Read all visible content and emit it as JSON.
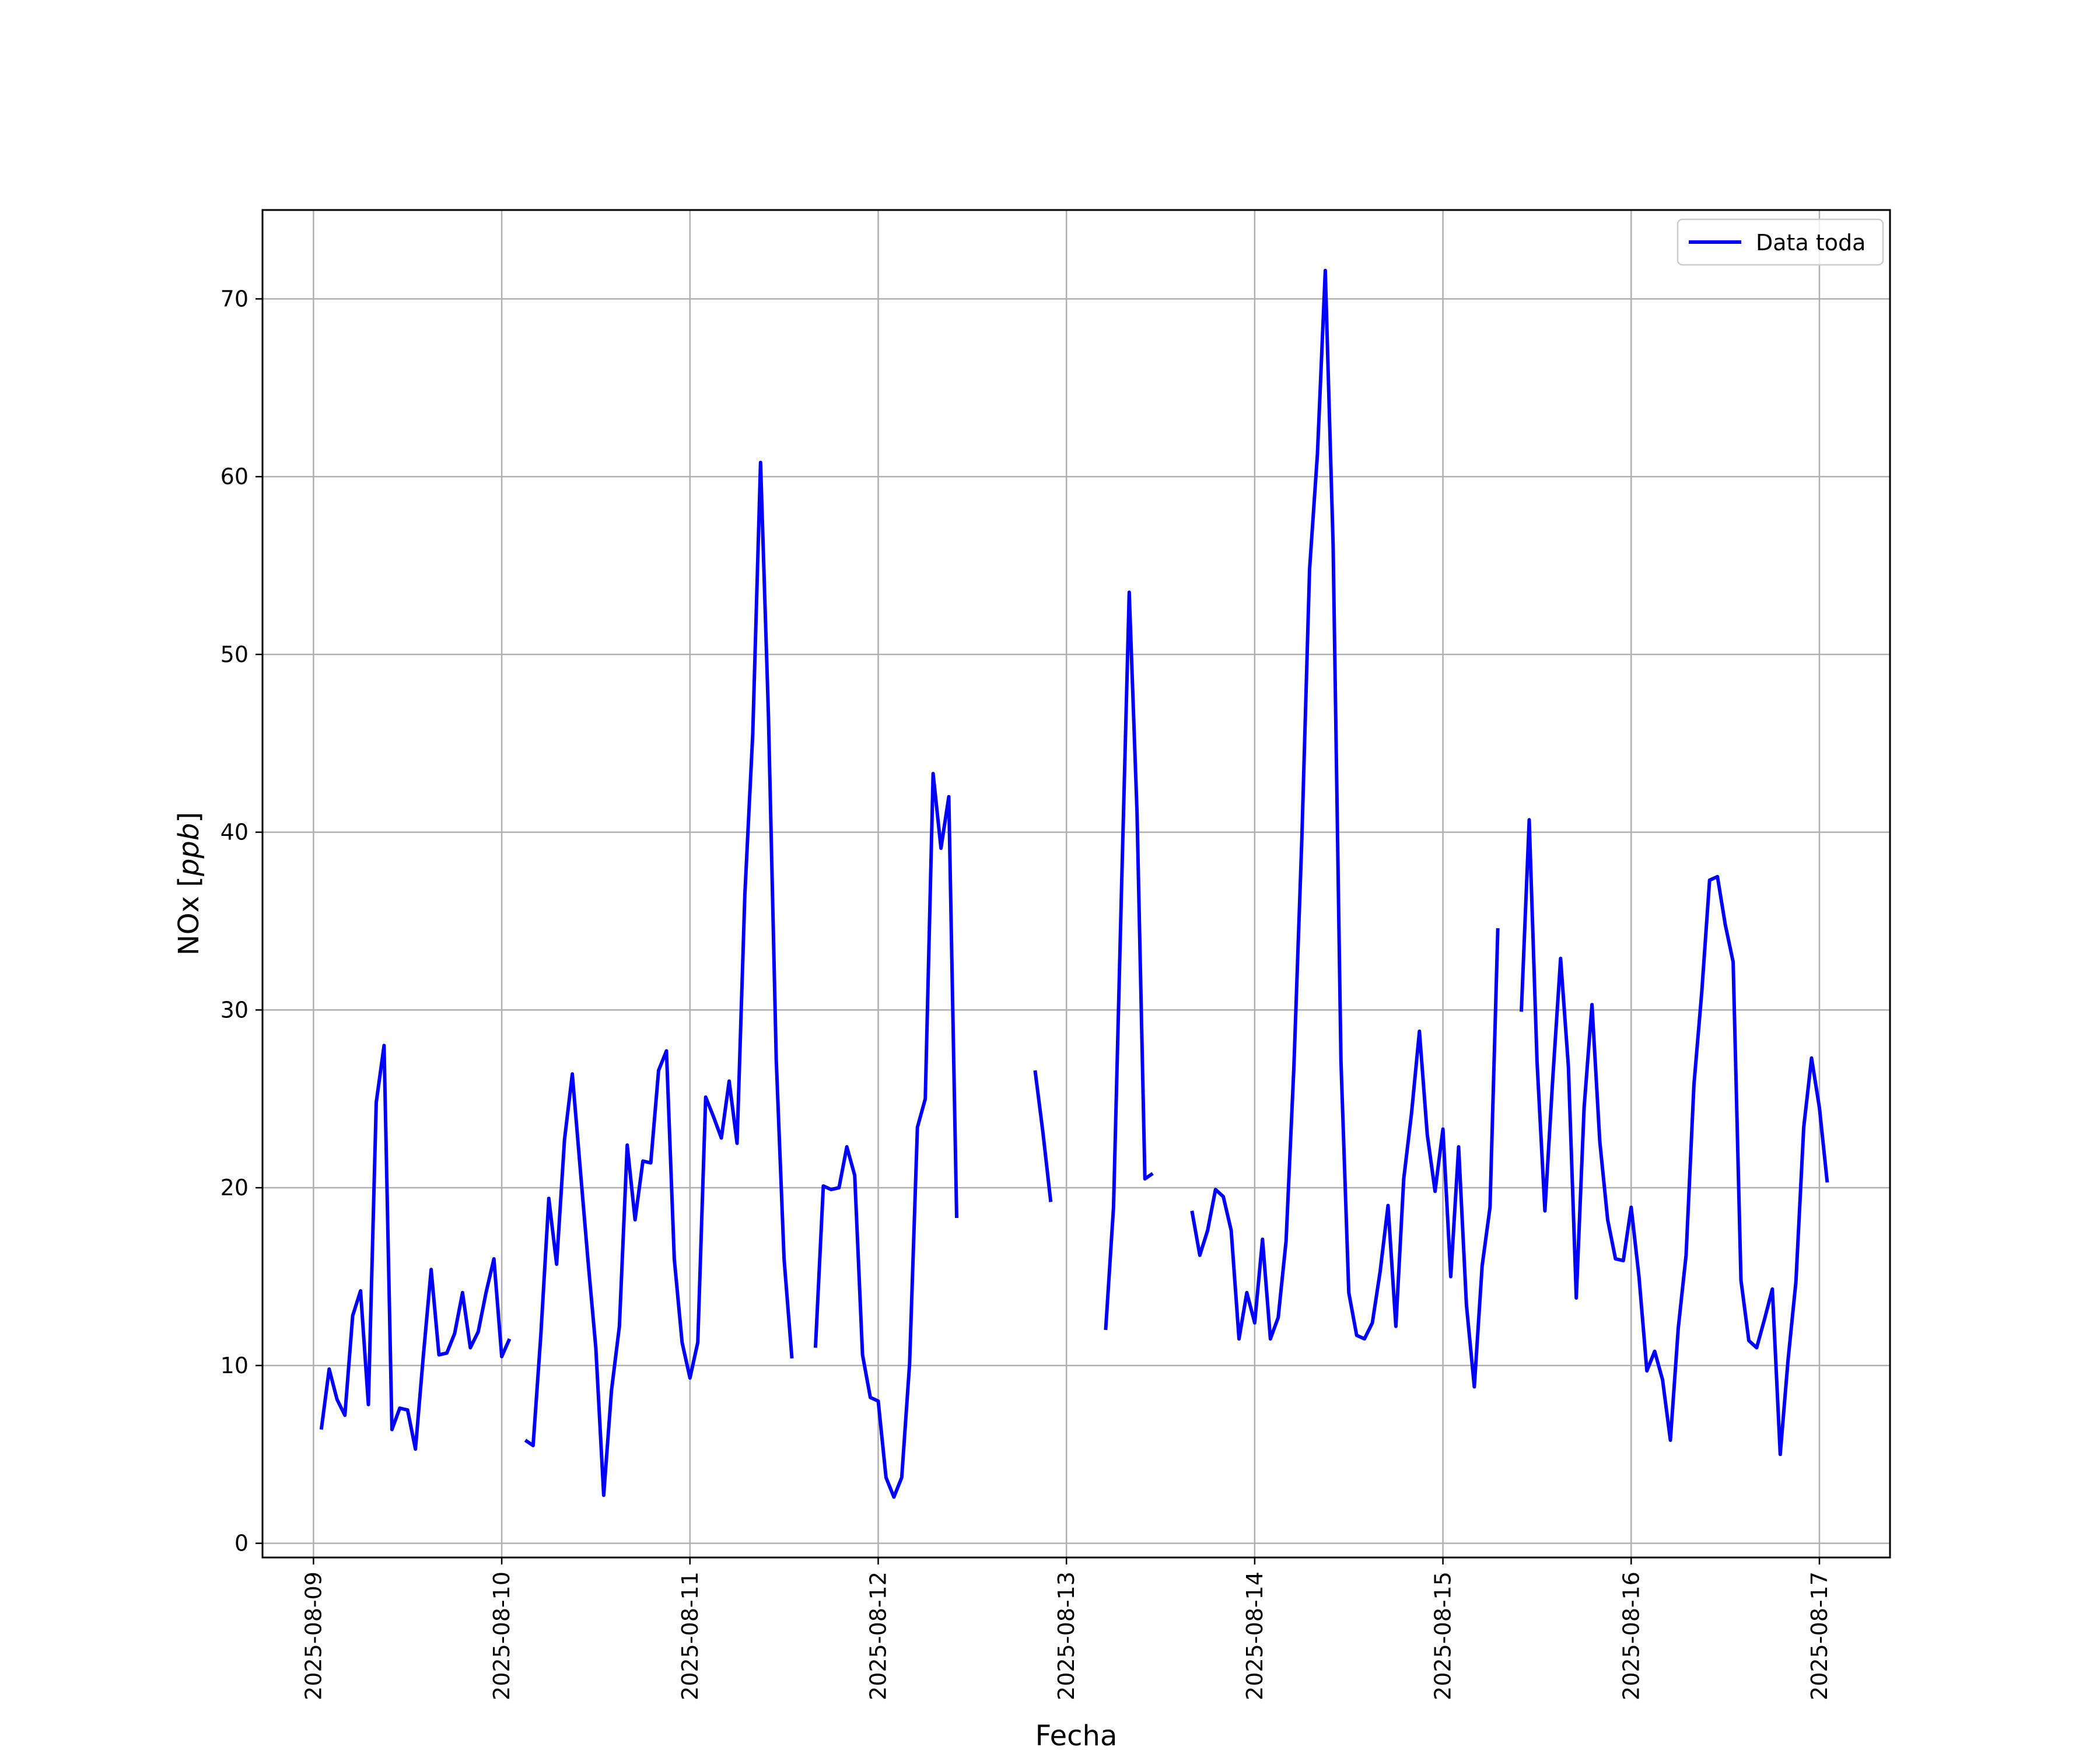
{
  "chart_data": {
    "type": "line",
    "title": "",
    "xlabel": "Fecha",
    "ylabel_main": "NOx [",
    "ylabel_unit": "ppb",
    "ylabel_close": "]",
    "xlim": [
      "2025-08-08 17:30",
      "2025-08-17 09:00"
    ],
    "ylim": [
      -0.8,
      75
    ],
    "grid": true,
    "legend_position": "top-right",
    "x_tick_labels": [
      "2025-08-09",
      "2025-08-10",
      "2025-08-11",
      "2025-08-12",
      "2025-08-13",
      "2025-08-14",
      "2025-08-15",
      "2025-08-16",
      "2025-08-17"
    ],
    "y_tick_labels": [
      "0",
      "10",
      "20",
      "30",
      "40",
      "50",
      "60",
      "70"
    ],
    "colors": {
      "series": "#0000ff",
      "grid": "#b0b0b0",
      "frame": "#000000"
    },
    "series": [
      {
        "name": "Data toda",
        "points": [
          [
            "2025-08-09 01:00",
            6.4
          ],
          [
            "2025-08-09 02:00",
            9.8
          ],
          [
            "2025-08-09 03:00",
            8.1
          ],
          [
            "2025-08-09 04:00",
            7.2
          ],
          [
            "2025-08-09 05:00",
            12.8
          ],
          [
            "2025-08-09 06:00",
            14.2
          ],
          [
            "2025-08-09 07:00",
            7.8
          ],
          [
            "2025-08-09 08:00",
            24.8
          ],
          [
            "2025-08-09 09:00",
            28.0
          ],
          [
            "2025-08-09 10:00",
            6.4
          ],
          [
            "2025-08-09 11:00",
            7.6
          ],
          [
            "2025-08-09 12:00",
            7.5
          ],
          [
            "2025-08-09 13:00",
            5.3
          ],
          [
            "2025-08-09 14:00",
            10.5
          ],
          [
            "2025-08-09 15:00",
            15.4
          ],
          [
            "2025-08-09 16:00",
            10.6
          ],
          [
            "2025-08-09 17:00",
            10.7
          ],
          [
            "2025-08-09 18:00",
            11.8
          ],
          [
            "2025-08-09 19:00",
            14.1
          ],
          [
            "2025-08-09 20:00",
            11.0
          ],
          [
            "2025-08-09 21:00",
            11.9
          ],
          [
            "2025-08-09 22:00",
            14.1
          ],
          [
            "2025-08-09 23:00",
            16.0
          ],
          [
            "2025-08-10 00:00",
            10.5
          ],
          [
            "2025-08-10 01:00",
            11.5
          ],
          null,
          [
            "2025-08-10 03:00",
            5.8
          ],
          [
            "2025-08-10 04:00",
            5.5
          ],
          [
            "2025-08-10 05:00",
            11.8
          ],
          [
            "2025-08-10 06:00",
            19.4
          ],
          [
            "2025-08-10 07:00",
            15.7
          ],
          [
            "2025-08-10 08:00",
            22.7
          ],
          [
            "2025-08-10 09:00",
            26.4
          ],
          [
            "2025-08-10 10:00",
            21.1
          ],
          [
            "2025-08-10 11:00",
            15.9
          ],
          [
            "2025-08-10 12:00",
            11.0
          ],
          [
            "2025-08-10 13:00",
            2.7
          ],
          [
            "2025-08-10 14:00",
            8.6
          ],
          [
            "2025-08-10 15:00",
            12.2
          ],
          [
            "2025-08-10 16:00",
            22.4
          ],
          [
            "2025-08-10 17:00",
            18.2
          ],
          [
            "2025-08-10 18:00",
            21.5
          ],
          [
            "2025-08-10 19:00",
            21.4
          ],
          [
            "2025-08-10 20:00",
            26.6
          ],
          [
            "2025-08-10 21:00",
            27.7
          ],
          [
            "2025-08-10 22:00",
            16.0
          ],
          [
            "2025-08-10 23:00",
            11.3
          ],
          [
            "2025-08-11 00:00",
            9.3
          ],
          [
            "2025-08-11 01:00",
            11.3
          ],
          [
            "2025-08-11 02:00",
            25.1
          ],
          [
            "2025-08-11 03:00",
            24.0
          ],
          [
            "2025-08-11 04:00",
            22.8
          ],
          [
            "2025-08-11 05:00",
            26.0
          ],
          [
            "2025-08-11 06:00",
            22.5
          ],
          [
            "2025-08-11 07:00",
            36.5
          ],
          [
            "2025-08-11 08:00",
            45.5
          ],
          [
            "2025-08-11 09:00",
            60.8
          ],
          [
            "2025-08-11 10:00",
            46.6
          ],
          [
            "2025-08-11 11:00",
            27.2
          ],
          [
            "2025-08-11 12:00",
            16.0
          ],
          [
            "2025-08-11 13:00",
            10.4
          ],
          null,
          [
            "2025-08-11 16:00",
            11.0
          ],
          [
            "2025-08-11 17:00",
            20.1
          ],
          [
            "2025-08-11 18:00",
            19.9
          ],
          [
            "2025-08-11 19:00",
            20.0
          ],
          [
            "2025-08-11 20:00",
            22.3
          ],
          [
            "2025-08-11 21:00",
            20.7
          ],
          [
            "2025-08-11 22:00",
            10.6
          ],
          [
            "2025-08-11 23:00",
            8.2
          ],
          [
            "2025-08-12 00:00",
            8.0
          ],
          [
            "2025-08-12 01:00",
            3.7
          ],
          [
            "2025-08-12 02:00",
            2.6
          ],
          [
            "2025-08-12 03:00",
            3.7
          ],
          [
            "2025-08-12 04:00",
            10.1
          ],
          [
            "2025-08-12 05:00",
            23.4
          ],
          [
            "2025-08-12 06:00",
            25.0
          ],
          [
            "2025-08-12 07:00",
            43.3
          ],
          [
            "2025-08-12 08:00",
            39.1
          ],
          [
            "2025-08-12 09:00",
            42.0
          ],
          [
            "2025-08-12 10:00",
            18.3
          ],
          null,
          [
            "2025-08-12 20:00",
            26.6
          ],
          [
            "2025-08-12 21:00",
            23.1
          ],
          [
            "2025-08-12 22:00",
            19.2
          ],
          null,
          [
            "2025-08-13 05:00",
            12.0
          ],
          [
            "2025-08-13 06:00",
            18.9
          ],
          [
            "2025-08-13 07:00",
            36.4
          ],
          [
            "2025-08-13 08:00",
            53.5
          ],
          [
            "2025-08-13 09:00",
            41.1
          ],
          [
            "2025-08-13 10:00",
            20.5
          ],
          [
            "2025-08-13 11:00",
            20.8
          ],
          null,
          [
            "2025-08-13 16:00",
            18.7
          ],
          [
            "2025-08-13 17:00",
            16.2
          ],
          [
            "2025-08-13 18:00",
            17.6
          ],
          [
            "2025-08-13 19:00",
            19.9
          ],
          [
            "2025-08-13 20:00",
            19.5
          ],
          [
            "2025-08-13 21:00",
            17.6
          ],
          [
            "2025-08-13 22:00",
            11.5
          ],
          [
            "2025-08-13 23:00",
            14.1
          ],
          [
            "2025-08-14 00:00",
            12.4
          ],
          [
            "2025-08-14 01:00",
            17.1
          ],
          [
            "2025-08-14 02:00",
            11.5
          ],
          [
            "2025-08-14 03:00",
            12.7
          ],
          [
            "2025-08-14 04:00",
            17.0
          ],
          [
            "2025-08-14 05:00",
            26.8
          ],
          [
            "2025-08-14 06:00",
            39.5
          ],
          [
            "2025-08-14 07:00",
            54.8
          ],
          [
            "2025-08-14 08:00",
            61.3
          ],
          [
            "2025-08-14 09:00",
            71.6
          ],
          [
            "2025-08-14 10:00",
            56.2
          ],
          [
            "2025-08-14 11:00",
            27.1
          ],
          [
            "2025-08-14 12:00",
            14.1
          ],
          [
            "2025-08-14 13:00",
            11.7
          ],
          [
            "2025-08-14 14:00",
            11.5
          ],
          [
            "2025-08-14 15:00",
            12.4
          ],
          [
            "2025-08-14 16:00",
            15.3
          ],
          [
            "2025-08-14 17:00",
            19.0
          ],
          [
            "2025-08-14 18:00",
            12.2
          ],
          [
            "2025-08-14 19:00",
            20.5
          ],
          [
            "2025-08-14 20:00",
            24.2
          ],
          [
            "2025-08-14 21:00",
            28.8
          ],
          [
            "2025-08-14 22:00",
            23.0
          ],
          [
            "2025-08-14 23:00",
            19.8
          ],
          [
            "2025-08-15 00:00",
            23.3
          ],
          [
            "2025-08-15 01:00",
            15.0
          ],
          [
            "2025-08-15 02:00",
            22.3
          ],
          [
            "2025-08-15 03:00",
            13.4
          ],
          [
            "2025-08-15 04:00",
            8.8
          ],
          [
            "2025-08-15 05:00",
            15.6
          ],
          [
            "2025-08-15 06:00",
            18.9
          ],
          [
            "2025-08-15 07:00",
            34.6
          ],
          null,
          [
            "2025-08-15 10:00",
            29.9
          ],
          [
            "2025-08-15 11:00",
            40.7
          ],
          [
            "2025-08-15 12:00",
            27.1
          ],
          [
            "2025-08-15 13:00",
            18.7
          ],
          [
            "2025-08-15 14:00",
            26.1
          ],
          [
            "2025-08-15 15:00",
            32.9
          ],
          [
            "2025-08-15 16:00",
            26.8
          ],
          [
            "2025-08-15 17:00",
            13.8
          ],
          [
            "2025-08-15 18:00",
            24.5
          ],
          [
            "2025-08-15 19:00",
            30.3
          ],
          [
            "2025-08-15 20:00",
            22.6
          ],
          [
            "2025-08-15 21:00",
            18.2
          ],
          [
            "2025-08-15 22:00",
            16.0
          ],
          [
            "2025-08-15 23:00",
            15.9
          ],
          [
            "2025-08-16 00:00",
            18.9
          ],
          [
            "2025-08-16 01:00",
            15.0
          ],
          [
            "2025-08-16 02:00",
            9.7
          ],
          [
            "2025-08-16 03:00",
            10.8
          ],
          [
            "2025-08-16 04:00",
            9.2
          ],
          [
            "2025-08-16 05:00",
            5.8
          ],
          [
            "2025-08-16 06:00",
            12.1
          ],
          [
            "2025-08-16 07:00",
            16.2
          ],
          [
            "2025-08-16 08:00",
            25.8
          ],
          [
            "2025-08-16 09:00",
            31.0
          ],
          [
            "2025-08-16 10:00",
            37.3
          ],
          [
            "2025-08-16 11:00",
            37.5
          ],
          [
            "2025-08-16 12:00",
            34.8
          ],
          [
            "2025-08-16 13:00",
            32.7
          ],
          [
            "2025-08-16 14:00",
            14.8
          ],
          [
            "2025-08-16 15:00",
            11.4
          ],
          [
            "2025-08-16 16:00",
            11.0
          ],
          [
            "2025-08-16 17:00",
            12.6
          ],
          [
            "2025-08-16 18:00",
            14.3
          ],
          [
            "2025-08-16 19:00",
            5.0
          ],
          [
            "2025-08-16 20:00",
            10.3
          ],
          [
            "2025-08-16 21:00",
            14.7
          ],
          [
            "2025-08-16 22:00",
            23.4
          ],
          [
            "2025-08-16 23:00",
            27.3
          ],
          [
            "2025-08-17 00:00",
            24.5
          ],
          [
            "2025-08-17 01:00",
            20.3
          ]
        ]
      }
    ]
  }
}
